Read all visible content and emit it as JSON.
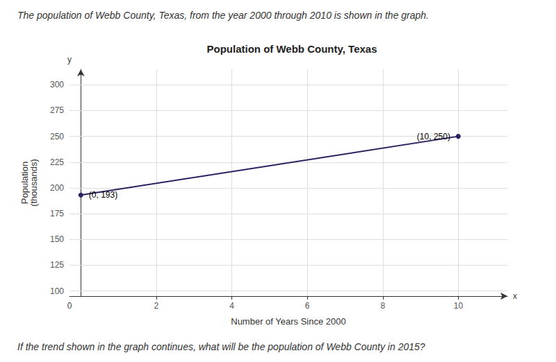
{
  "chart_data": {
    "type": "line",
    "title": "Population of Webb County, Texas",
    "subtitle": "The population of Webb County, Texas, from the year 2000 through 2010 is shown in the graph.",
    "footnote": "If the trend shown in the graph continues, what will be the population of Webb County in 2015?",
    "xlabel": "Number of Years Since 2000",
    "ylabel": "Population\n(thousands)",
    "x": [
      0,
      10
    ],
    "values": [
      193,
      250
    ],
    "value_labels": [
      "(0, 193)",
      "(10, 250)"
    ],
    "data_labels": true,
    "color": "#2d2060",
    "xlim": [
      -0.3,
      11.3
    ],
    "ylim": [
      95,
      315
    ],
    "xticks": [
      2,
      4,
      6,
      8,
      10
    ],
    "yticks": [
      100,
      125,
      150,
      175,
      200,
      225,
      250,
      275,
      300
    ],
    "grid": true,
    "x_arrow_label": "x",
    "y_arrow_label": "y",
    "origin_label": "0"
  }
}
